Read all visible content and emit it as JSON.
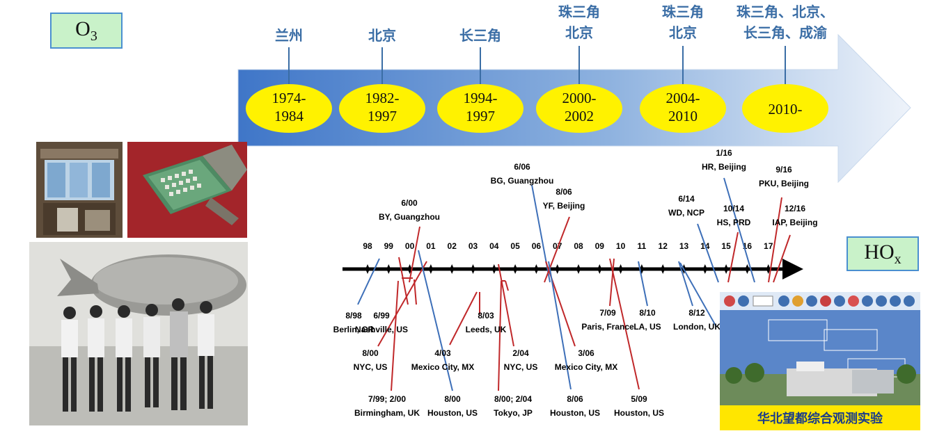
{
  "o3_label": "O3",
  "hox_label": "HOx",
  "o3_timeline": [
    {
      "period": [
        "1974-",
        "1984"
      ],
      "site": [
        "兰州"
      ]
    },
    {
      "period": [
        "1982-",
        "1997"
      ],
      "site": [
        "北京"
      ]
    },
    {
      "period": [
        "1994-",
        "1997"
      ],
      "site": [
        "长三角"
      ]
    },
    {
      "period": [
        "2000-",
        "2002"
      ],
      "site": [
        "珠三角",
        "北京"
      ]
    },
    {
      "period": [
        "2004-",
        "2010"
      ],
      "site": [
        "珠三角",
        "北京"
      ]
    },
    {
      "period": [
        "2010-"
      ],
      "site": [
        "珠三角、北京、",
        "长三角、成渝"
      ]
    }
  ],
  "hox_timeline": {
    "years": [
      "98",
      "99",
      "00",
      "01",
      "02",
      "03",
      "04",
      "05",
      "06",
      "07",
      "08",
      "09",
      "10",
      "11",
      "12",
      "13",
      "14",
      "15",
      "16",
      "17"
    ],
    "campaigns_above": [
      {
        "date": "6/00",
        "place": "BY, Guangzhou"
      },
      {
        "date": "6/06",
        "place": "BG, Guangzhou"
      },
      {
        "date": "8/06",
        "place": "YF, Beijing"
      },
      {
        "date": "6/14",
        "place": "WD, NCP"
      },
      {
        "date": "1/16",
        "place": "HR, Beijing"
      },
      {
        "date": "10/14",
        "place": "HS, PRD"
      },
      {
        "date": "9/16",
        "place": "PKU, Beijing"
      },
      {
        "date": "12/16",
        "place": "IAP, Beijing"
      }
    ],
    "campaigns_below": [
      {
        "date": "8/98",
        "place": "Berlin, GR"
      },
      {
        "date": "6/99",
        "place": "Nashville, US"
      },
      {
        "date": "8/00",
        "place": "NYC, US"
      },
      {
        "date": "7/99; 2/00",
        "place": "Birmingham, UK"
      },
      {
        "date": "8/00",
        "place": "Houston, US"
      },
      {
        "date": "8/03",
        "place": "Leeds, UK"
      },
      {
        "date": "4/03",
        "place": "Mexico City, MX"
      },
      {
        "date": "2/04",
        "place": "NYC, US"
      },
      {
        "date": "8/00; 2/04",
        "place": "Tokyo, JP"
      },
      {
        "date": "3/06",
        "place": "Mexico City, MX"
      },
      {
        "date": "8/06",
        "place": "Houston, US"
      },
      {
        "date": "7/09",
        "place": "Paris, France"
      },
      {
        "date": "8/10",
        "place": "LA, US"
      },
      {
        "date": "5/09",
        "place": "Houston, US"
      },
      {
        "date": "8/12",
        "place": "London, UK"
      }
    ]
  },
  "photo_caption": "华北望都综合观测实验",
  "colors": {
    "arrow_start": "#3f76c8",
    "arrow_end": "#eef3fa",
    "ellipse": "#fff200",
    "china_line": "#3a6da5",
    "red_line": "#c0282a",
    "blue_line": "#3d6fb8"
  }
}
